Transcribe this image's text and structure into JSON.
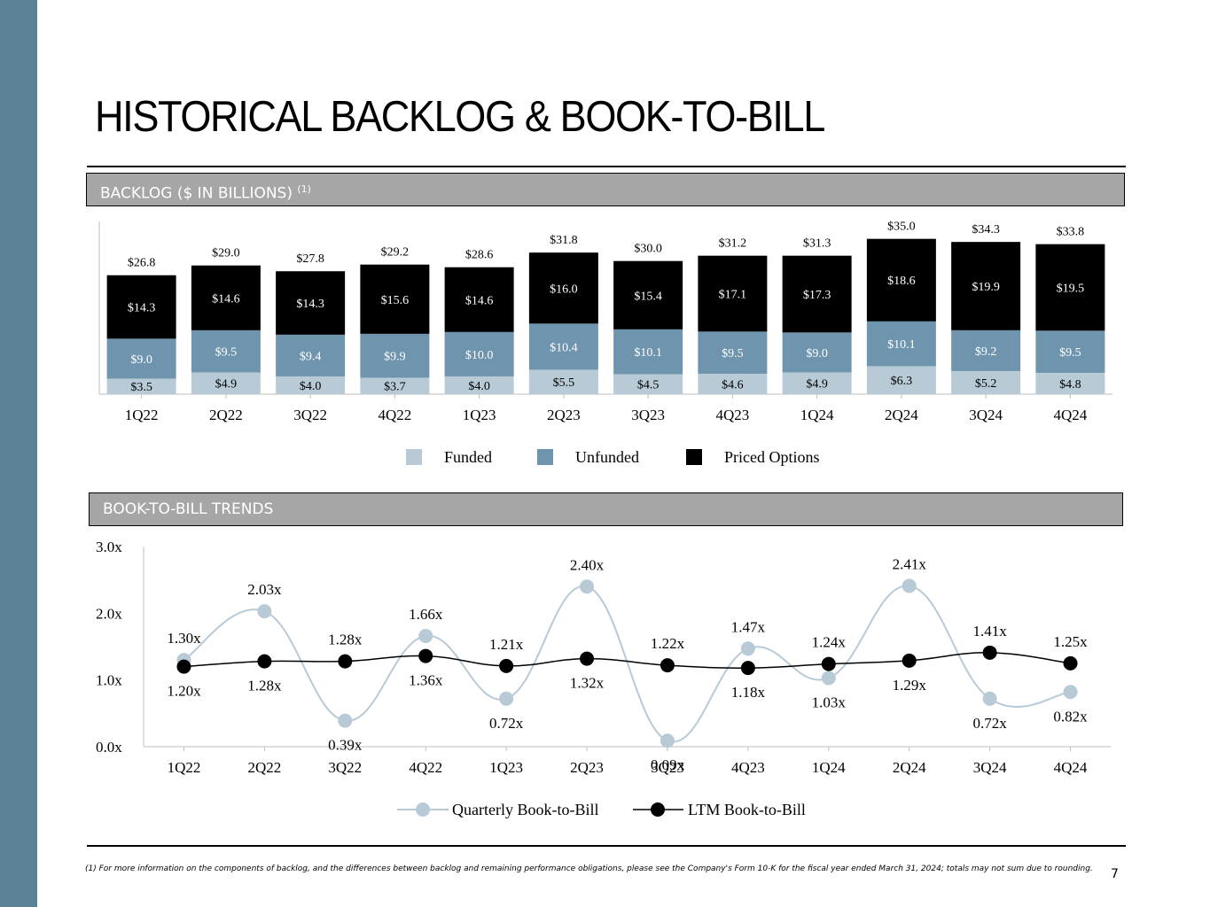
{
  "title": "HISTORICAL BACKLOG & BOOK-TO-BILL",
  "page_number": "7",
  "footnote": "(1) For more information on the components of backlog, and the differences between backlog and remaining performance obligations, please see the Company's Form 10-K for the fiscal year ended March 31, 2024; totals may not sum due to rounding.",
  "colors": {
    "band": "#5b8196",
    "funded": "#b7cad6",
    "unfunded": "#6f95ae",
    "priced": "#000000",
    "quarterly": "#b7cad6",
    "ltm": "#000000"
  },
  "backlog_section": {
    "label": "BACKLOG ($ IN BILLIONS)",
    "sup": "(1)"
  },
  "btb_section": {
    "label": "BOOK-TO-BILL TRENDS"
  },
  "chart_data": [
    {
      "type": "bar",
      "stacked": true,
      "title": "BACKLOG ($ IN BILLIONS)",
      "categories": [
        "1Q22",
        "2Q22",
        "3Q22",
        "4Q22",
        "1Q23",
        "2Q23",
        "3Q23",
        "4Q23",
        "1Q24",
        "2Q24",
        "3Q24",
        "4Q24"
      ],
      "series": [
        {
          "name": "Funded",
          "values": [
            3.5,
            4.9,
            4.0,
            3.7,
            4.0,
            5.5,
            4.5,
            4.6,
            4.9,
            6.3,
            5.2,
            4.8
          ],
          "labels": [
            "$3.5",
            "$4.9",
            "$4.0",
            "$3.7",
            "$4.0",
            "$5.5",
            "$4.5",
            "$4.6",
            "$4.9",
            "$6.3",
            "$5.2",
            "$4.8"
          ]
        },
        {
          "name": "Unfunded",
          "values": [
            9.0,
            9.5,
            9.4,
            9.9,
            10.0,
            10.4,
            10.1,
            9.5,
            9.0,
            10.1,
            9.2,
            9.5
          ],
          "labels": [
            "$9.0",
            "$9.5",
            "$9.4",
            "$9.9",
            "$10.0",
            "$10.4",
            "$10.1",
            "$9.5",
            "$9.0",
            "$10.1",
            "$9.2",
            "$9.5"
          ]
        },
        {
          "name": "Priced Options",
          "values": [
            14.3,
            14.6,
            14.3,
            15.6,
            14.6,
            16.0,
            15.4,
            17.1,
            17.3,
            18.6,
            19.9,
            19.5
          ],
          "labels": [
            "$14.3",
            "$14.6",
            "$14.3",
            "$15.6",
            "$14.6",
            "$16.0",
            "$15.4",
            "$17.1",
            "$17.3",
            "$18.6",
            "$19.9",
            "$19.5"
          ]
        }
      ],
      "totals": [
        26.8,
        29.0,
        27.8,
        29.2,
        28.6,
        31.8,
        30.0,
        31.2,
        31.3,
        35.0,
        34.3,
        33.8
      ],
      "total_labels": [
        "$26.8",
        "$29.0",
        "$27.8",
        "$29.2",
        "$28.6",
        "$31.8",
        "$30.0",
        "$31.2",
        "$31.3",
        "$35.0",
        "$34.3",
        "$33.8"
      ],
      "legend": [
        "Funded",
        "Unfunded",
        "Priced Options"
      ],
      "legend_position": "bottom"
    },
    {
      "type": "line",
      "title": "BOOK-TO-BILL TRENDS",
      "categories": [
        "1Q22",
        "2Q22",
        "3Q22",
        "4Q22",
        "1Q23",
        "2Q23",
        "3Q23",
        "4Q23",
        "1Q24",
        "2Q24",
        "3Q24",
        "4Q24"
      ],
      "ylim": [
        0,
        3
      ],
      "yticks": [
        "0.0x",
        "1.0x",
        "2.0x",
        "3.0x"
      ],
      "series": [
        {
          "name": "Quarterly Book-to-Bill",
          "values": [
            1.3,
            2.03,
            0.39,
            1.66,
            0.72,
            2.4,
            0.09,
            1.47,
            1.03,
            2.41,
            0.72,
            0.82
          ],
          "labels": [
            "1.30x",
            "2.03x",
            "0.39x",
            "1.66x",
            "0.72x",
            "2.40x",
            "0.09x",
            "1.47x",
            "1.03x",
            "2.41x",
            "0.72x",
            "0.82x"
          ]
        },
        {
          "name": "LTM Book-to-Bill",
          "values": [
            1.2,
            1.28,
            1.28,
            1.36,
            1.21,
            1.32,
            1.22,
            1.18,
            1.24,
            1.29,
            1.41,
            1.25
          ],
          "labels": [
            "1.20x",
            "1.28x",
            "1.28x",
            "1.36x",
            "1.21x",
            "1.32x",
            "1.22x",
            "1.18x",
            "1.24x",
            "1.29x",
            "1.41x",
            "1.25x"
          ]
        }
      ],
      "legend": [
        "Quarterly Book-to-Bill",
        "LTM Book-to-Bill"
      ],
      "legend_position": "bottom"
    }
  ]
}
